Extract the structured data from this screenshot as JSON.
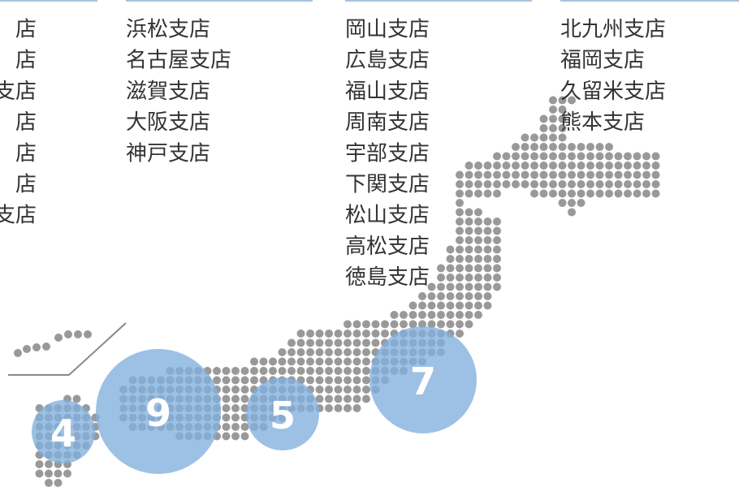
{
  "columns": [
    {
      "items": [
        "店",
        "店",
        "支店",
        "店",
        "店",
        "店",
        "支店"
      ]
    },
    {
      "items": [
        "浜松支店",
        "名古屋支店",
        "滋賀支店",
        "大阪支店",
        "神戸支店"
      ]
    },
    {
      "items": [
        "岡山支店",
        "広島支店",
        "福山支店",
        "周南支店",
        "宇部支店",
        "下関支店",
        "松山支店",
        "高松支店",
        "徳島支店"
      ]
    },
    {
      "items": [
        "北九州支店",
        "福岡支店",
        "久留米支店",
        "熊本支店"
      ]
    }
  ],
  "bubbles": [
    {
      "label": "4"
    },
    {
      "label": "9"
    },
    {
      "label": "5"
    },
    {
      "label": "7"
    }
  ]
}
